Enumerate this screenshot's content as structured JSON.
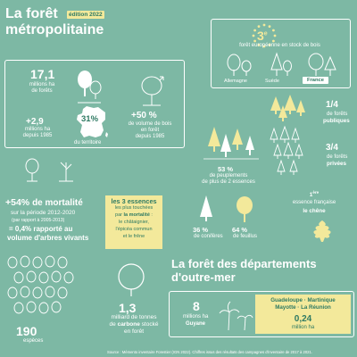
{
  "header": {
    "title_line1": "La forêt",
    "title_line2": "métropolitaine",
    "edition": "édition 2022"
  },
  "europe": {
    "rank": "3",
    "rank_suffix": "e",
    "text": "forêt européenne en stock de bois",
    "countries": [
      "Allemagne",
      "Suède",
      "France"
    ]
  },
  "forest_area": {
    "value": "17,1",
    "unit_line1": "millions ha",
    "unit_line2": "de forêts",
    "growth_value": "+2,9",
    "growth_line1": "millions ha",
    "growth_line2": "depuis 1985",
    "territory_pct": "31%",
    "territory_label": "du territoire",
    "wood_value": "+50 %",
    "wood_line1": "de volume de bois",
    "wood_line2": "en forêt",
    "wood_line3": "depuis 1985"
  },
  "ownership": {
    "public_fraction": "1/4",
    "public_line1": "de forêts",
    "public_line2": "publiques",
    "private_fraction": "3/4",
    "private_line1": "de forêts",
    "private_line2": "privées"
  },
  "stands": {
    "pct": "53 %",
    "line1": "de peuplements",
    "line2": "de plus de 2 essences"
  },
  "mortality": {
    "value": "+54%",
    "label": "de mortalité",
    "period": "sur la période 2012-2020",
    "compare": "(par rapport à 2005-2013)",
    "ratio_line1": "= 0,4% rapporté au",
    "ratio_line2": "volume d'arbres vivants"
  },
  "essences": {
    "line1": "les 3 essences",
    "line2": "les plus touchées",
    "line3a": "par ",
    "line3b": "la mortalité",
    "line3c": " :",
    "line4": "le châtaignier,",
    "line5": "l'épicéa commun",
    "line6": "et le frêne"
  },
  "conifers": {
    "value": "36 %",
    "label": "de conifères"
  },
  "broadleaf": {
    "value": "64 %",
    "label": "de feuillus"
  },
  "first_essence": {
    "rank": "1",
    "rank_suffix": "ère",
    "line1": "essence française",
    "line2": "le chêne"
  },
  "species": {
    "value": "190",
    "label": "espèces"
  },
  "carbon": {
    "value": "1,3",
    "line1": "milliard de tonnes",
    "line2a": "de ",
    "line2b": "carbone",
    "line2c": " stocké",
    "line3": "en forêt"
  },
  "overseas": {
    "title_line1": "La forêt des départements",
    "title_line2": "d'outre-mer",
    "guyane_value": "8",
    "guyane_line1": "millions ha",
    "guyane_line2": "Guyane",
    "others_line1": "Guadeloupe · Martinique",
    "others_line2": "Mayotte · La Réunion",
    "others_value": "0,24",
    "others_unit": "million ha"
  },
  "source": "Source : Mémento inventaire Forestier (IGN 2022). Chiffres issus des résultats des campagnes d'inventaire de 2017 à 2021.",
  "colors": {
    "background": "#7db8a4",
    "accent_yellow": "#f3e99b",
    "dark_green": "#2f7a63",
    "white": "#ffffff"
  }
}
